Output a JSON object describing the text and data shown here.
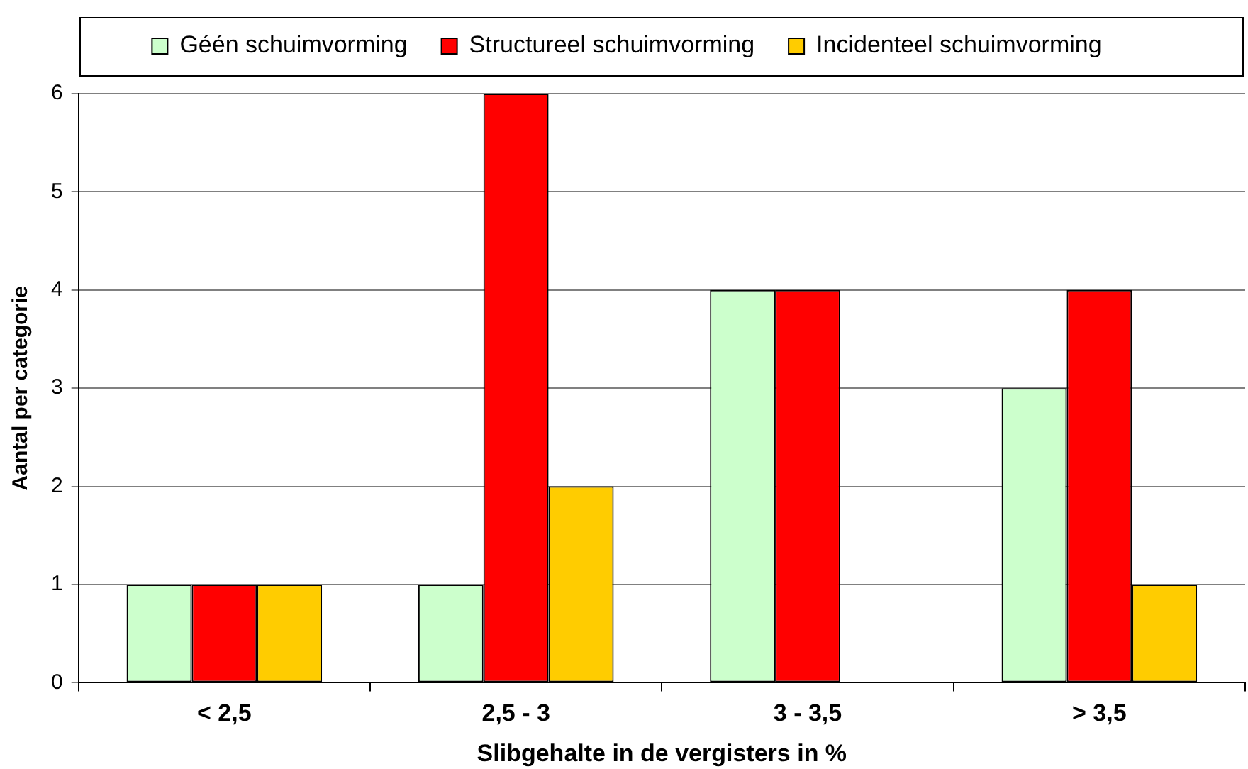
{
  "chart_data": {
    "type": "bar",
    "categories": [
      "< 2,5",
      "2,5 - 3",
      "3 - 3,5",
      "> 3,5"
    ],
    "series": [
      {
        "name": "Géén schuimvorming",
        "color": "#ccffcc",
        "values": [
          1,
          1,
          4,
          3
        ]
      },
      {
        "name": "Structureel schuimvorming",
        "color": "#ff0000",
        "values": [
          1,
          6,
          4,
          4
        ]
      },
      {
        "name": "Incidenteel schuimvorming",
        "color": "#ffcc00",
        "values": [
          1,
          2,
          0,
          1
        ]
      }
    ],
    "xlabel": "Slibgehalte in de vergisters in %",
    "ylabel": "Aantal per categorie",
    "ylim": [
      0,
      6
    ],
    "yticks": [
      0,
      1,
      2,
      3,
      4,
      5,
      6
    ],
    "grid": "y",
    "legend": "top"
  }
}
